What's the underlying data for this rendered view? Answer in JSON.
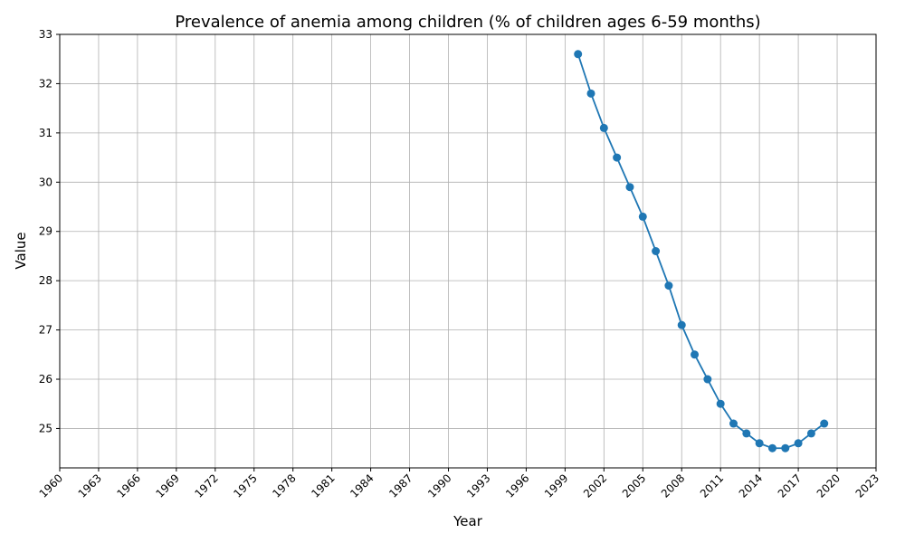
{
  "chart_data": {
    "type": "line",
    "title": "Prevalence of anemia among children (% of children ages 6-59 months)",
    "xlabel": "Year",
    "ylabel": "Value",
    "xlim": [
      1960,
      2023
    ],
    "ylim": [
      24.2,
      33
    ],
    "xticks": [
      1960,
      1963,
      1966,
      1969,
      1972,
      1975,
      1978,
      1981,
      1984,
      1987,
      1990,
      1993,
      1996,
      1999,
      2002,
      2005,
      2008,
      2011,
      2014,
      2017,
      2020,
      2023
    ],
    "yticks": [
      25,
      26,
      27,
      28,
      29,
      30,
      31,
      32,
      33
    ],
    "grid": true,
    "color": "#1f77b4",
    "series": [
      {
        "x": [
          2000,
          2001,
          2002,
          2003,
          2004,
          2005,
          2006,
          2007,
          2008,
          2009,
          2010,
          2011,
          2012,
          2013,
          2014,
          2015,
          2016,
          2017,
          2018,
          2019
        ],
        "y": [
          32.6,
          31.8,
          31.1,
          30.5,
          29.9,
          29.3,
          28.6,
          27.9,
          27.1,
          26.5,
          26.0,
          25.5,
          25.1,
          24.9,
          24.7,
          24.6,
          24.6,
          24.7,
          24.9,
          25.1
        ]
      }
    ]
  }
}
